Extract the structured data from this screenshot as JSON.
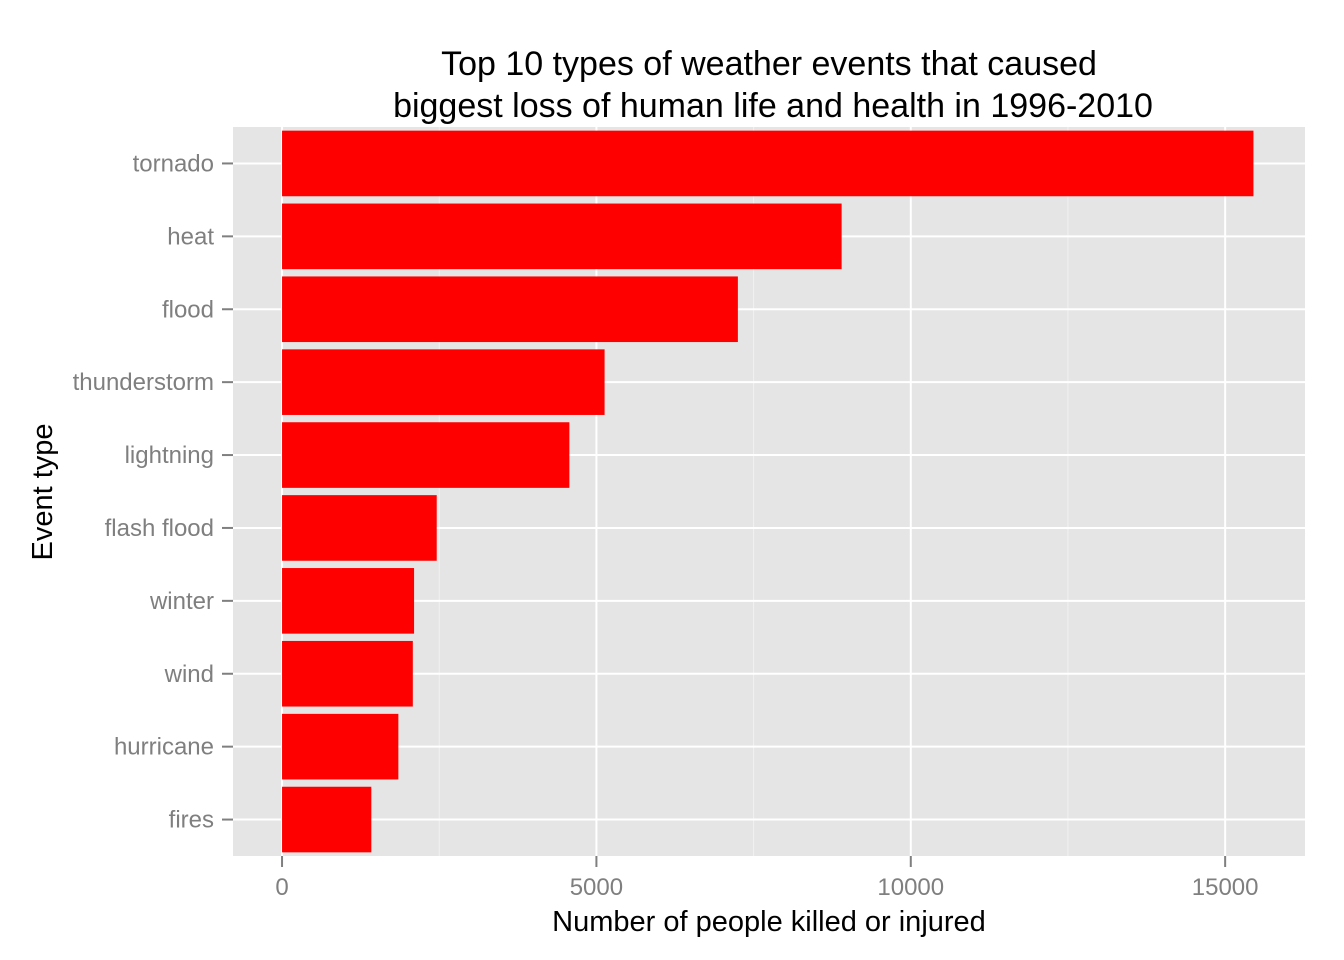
{
  "chart_data": {
    "type": "bar",
    "orientation": "horizontal",
    "title": "Top 10 types of weather events that caused biggest loss of human life and health in 1996-2010",
    "title_lines": [
      "Top 10 types of weather events that caused",
      "biggest loss of human life and health in 1996-2010"
    ],
    "xlabel": "Number of people killed or injured",
    "ylabel": "Event type",
    "categories": [
      "tornado",
      "heat",
      "flood",
      "thunderstorm",
      "lightning",
      "flash flood",
      "winter",
      "wind",
      "hurricane",
      "fires"
    ],
    "values": [
      15450,
      8900,
      7250,
      5130,
      4570,
      2460,
      2100,
      2080,
      1850,
      1420
    ],
    "xlim": [
      -780,
      16270
    ],
    "xticks": [
      0,
      5000,
      10000,
      15000
    ],
    "xtick_labels": [
      "0",
      "5000",
      "10000",
      "15000"
    ],
    "grid": true,
    "colors": {
      "bar": "#ff0000",
      "panel": "#e5e5e5",
      "grid_major": "#ffffff",
      "grid_minor": "#f2f2f2",
      "tick_text": "#7f7f7f",
      "tick_mark": "#7f7f7f"
    }
  }
}
